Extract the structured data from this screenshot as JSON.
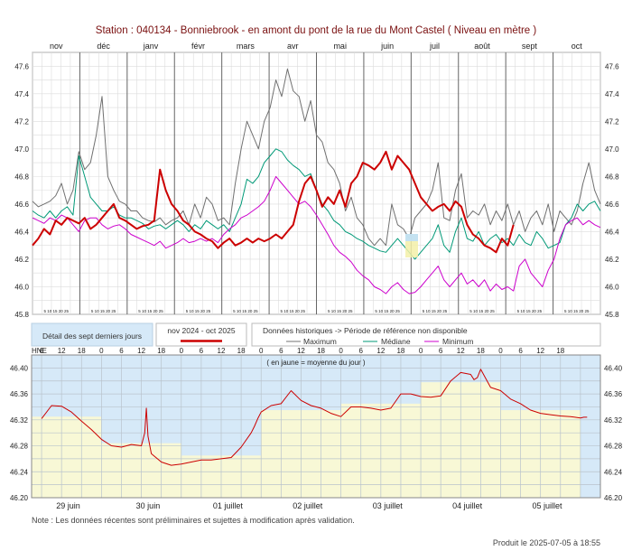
{
  "title": "Station : 040134       -    Bonniebrook - en amont du pont de la rue du Mont Castel   ( Niveau en mètre )",
  "colors": {
    "current": "#cc0000",
    "maximum": "#707070",
    "median": "#009977",
    "minimum": "#cc00cc",
    "panel_sky": "#d6e9f8",
    "panel_pale": "#f8f8d6"
  },
  "chart_data": [
    {
      "type": "line",
      "months": [
        "nov",
        "déc",
        "janv",
        "févr",
        "mars",
        "avr",
        "mai",
        "juin",
        "juil",
        "août",
        "sept",
        "oct"
      ],
      "week_tick_label": "5 10 15 20 25",
      "ylim": [
        45.8,
        47.7
      ],
      "yticks": [
        "45.8",
        "46.0",
        "46.2",
        "46.4",
        "46.6",
        "46.8",
        "47.0",
        "47.2",
        "47.4",
        "47.6"
      ],
      "series": [
        {
          "name": "Maximum",
          "key": "max",
          "values": [
            46.62,
            46.58,
            46.6,
            46.62,
            46.66,
            46.75,
            46.6,
            46.7,
            46.98,
            46.85,
            46.9,
            47.1,
            47.38,
            46.8,
            46.7,
            46.62,
            46.6,
            46.55,
            46.55,
            46.5,
            46.48,
            46.47,
            46.5,
            46.45,
            46.48,
            46.5,
            46.55,
            46.45,
            46.6,
            46.5,
            46.65,
            46.6,
            46.48,
            46.5,
            46.45,
            46.75,
            47.0,
            47.2,
            47.1,
            47.0,
            47.2,
            47.3,
            47.5,
            47.38,
            47.58,
            47.42,
            47.38,
            47.2,
            47.35,
            47.1,
            47.05,
            46.9,
            46.85,
            46.75,
            46.55,
            46.65,
            46.5,
            46.45,
            46.35,
            46.3,
            46.35,
            46.3,
            46.6,
            46.45,
            46.42,
            46.35,
            46.5,
            46.55,
            46.6,
            46.7,
            46.9,
            46.5,
            46.48,
            46.7,
            46.82,
            46.5,
            46.55,
            46.52,
            46.6,
            46.45,
            46.55,
            46.48,
            46.6,
            46.45,
            46.55,
            46.4,
            46.5,
            46.55,
            46.45,
            46.6,
            46.4,
            46.55,
            46.5,
            46.45,
            46.55,
            46.75,
            46.9,
            46.7,
            46.6
          ]
        },
        {
          "name": "Médiane",
          "key": "med",
          "values": [
            46.55,
            46.52,
            46.5,
            46.55,
            46.5,
            46.55,
            46.58,
            46.52,
            46.95,
            46.8,
            46.65,
            46.6,
            46.55,
            46.55,
            46.58,
            46.52,
            46.5,
            46.5,
            46.48,
            46.46,
            46.42,
            46.44,
            46.45,
            46.42,
            46.45,
            46.48,
            46.45,
            46.4,
            46.45,
            46.42,
            46.48,
            46.45,
            46.42,
            46.45,
            46.4,
            46.5,
            46.6,
            46.78,
            46.75,
            46.8,
            46.9,
            46.95,
            47.0,
            46.98,
            46.92,
            46.88,
            46.85,
            46.8,
            46.82,
            46.7,
            46.6,
            46.55,
            46.48,
            46.45,
            46.4,
            46.38,
            46.35,
            46.33,
            46.3,
            46.28,
            46.26,
            46.25,
            46.3,
            46.35,
            46.3,
            46.25,
            46.2,
            46.25,
            46.3,
            46.35,
            46.45,
            46.3,
            46.25,
            46.4,
            46.5,
            46.35,
            46.33,
            46.4,
            46.3,
            46.35,
            46.38,
            46.32,
            46.35,
            46.3,
            46.38,
            46.32,
            46.3,
            46.4,
            46.35,
            46.28,
            46.3,
            46.32,
            46.45,
            46.5,
            46.6,
            46.55,
            46.6,
            46.62,
            46.55
          ]
        },
        {
          "name": "Minimum",
          "key": "min",
          "values": [
            46.5,
            46.48,
            46.46,
            46.5,
            46.48,
            46.52,
            46.5,
            46.45,
            46.4,
            46.48,
            46.5,
            46.5,
            46.45,
            46.42,
            46.44,
            46.45,
            46.42,
            46.38,
            46.36,
            46.34,
            46.32,
            46.3,
            46.33,
            46.28,
            46.3,
            46.32,
            46.35,
            46.32,
            46.33,
            46.35,
            46.33,
            46.35,
            46.32,
            46.38,
            46.42,
            46.45,
            46.5,
            46.52,
            46.55,
            46.58,
            46.62,
            46.7,
            46.8,
            46.75,
            46.7,
            46.65,
            46.6,
            46.62,
            46.58,
            46.52,
            46.45,
            46.38,
            46.3,
            46.25,
            46.22,
            46.18,
            46.12,
            46.08,
            46.05,
            46.0,
            45.98,
            45.95,
            46.0,
            46.03,
            45.98,
            45.95,
            45.96,
            46.0,
            46.05,
            46.1,
            46.15,
            46.05,
            46.0,
            46.05,
            46.1,
            46.02,
            46.05,
            46.0,
            46.05,
            45.97,
            46.02,
            45.98,
            46.0,
            45.97,
            46.15,
            46.2,
            46.1,
            46.05,
            46.0,
            46.12,
            46.2,
            46.35,
            46.45,
            46.48,
            46.5,
            46.45,
            46.48,
            46.45,
            46.43
          ]
        },
        {
          "name": "nov 2024 - oct 2025",
          "key": "cur",
          "values": [
            46.3,
            46.35,
            46.42,
            46.38,
            46.48,
            46.45,
            46.5,
            46.48,
            46.46,
            46.5,
            46.42,
            46.45,
            46.5,
            46.55,
            46.6,
            46.5,
            46.48,
            46.45,
            46.42,
            46.44,
            46.45,
            46.48,
            46.85,
            46.7,
            46.6,
            46.55,
            46.48,
            46.45,
            46.4,
            46.38,
            46.35,
            46.33,
            46.28,
            46.32,
            46.35,
            46.3,
            46.32,
            46.35,
            46.32,
            46.35,
            46.33,
            46.35,
            46.38,
            46.35,
            46.4,
            46.45,
            46.62,
            46.75,
            46.8,
            46.7,
            46.58,
            46.65,
            46.6,
            46.7,
            46.58,
            46.75,
            46.8,
            46.9,
            46.88,
            46.85,
            46.9,
            46.98,
            46.85,
            46.95,
            46.9,
            46.85,
            46.75,
            46.65,
            46.6,
            46.55,
            46.58,
            46.6,
            46.55,
            46.62,
            46.58,
            46.45,
            46.38,
            46.35,
            46.3,
            46.28,
            46.25,
            46.35,
            46.3,
            46.45
          ]
        }
      ]
    },
    {
      "type": "line",
      "subtitle": "( en jaune = moyenne du jour )",
      "hne_label": "HNE",
      "hour_ticks": [
        "6",
        "12",
        "18",
        "0",
        "6",
        "12",
        "18",
        "0",
        "6",
        "12",
        "18",
        "0",
        "6",
        "12",
        "18",
        "0",
        "6",
        "12",
        "18",
        "0",
        "6",
        "12",
        "18",
        "0",
        "6",
        "12",
        "18"
      ],
      "day_labels": [
        "29 juin",
        "30 juin",
        "01 juillet",
        "02 juillet",
        "03 juillet",
        "04 juillet",
        "05 juillet"
      ],
      "ylim": [
        46.2,
        46.42
      ],
      "yticks": [
        "46.20",
        "46.24",
        "46.28",
        "46.32",
        "46.36",
        "46.40"
      ],
      "daily_mean": [
        46.325,
        46.284,
        46.265,
        46.335,
        46.345,
        46.378,
        46.335
      ],
      "series": [
        {
          "name": "niveau",
          "key": "cur",
          "x_hours": [
            0,
            3,
            6,
            9,
            12,
            15,
            18,
            21,
            24,
            27,
            30,
            31,
            31.5,
            32,
            33,
            36,
            39,
            42,
            45,
            48,
            51,
            54,
            57,
            60,
            63,
            64,
            65,
            66,
            69,
            72,
            75,
            78,
            81,
            84,
            87,
            90,
            93,
            96,
            99,
            102,
            105,
            108,
            111,
            114,
            117,
            120,
            123,
            126,
            129,
            130,
            131,
            132,
            135,
            138,
            141,
            144,
            147,
            150,
            153,
            156,
            159,
            162,
            163,
            164
          ],
          "values": [
            46.322,
            46.342,
            46.341,
            46.332,
            46.318,
            46.305,
            46.29,
            46.28,
            46.278,
            46.282,
            46.28,
            46.3,
            46.338,
            46.295,
            46.268,
            46.255,
            46.25,
            46.252,
            46.255,
            46.258,
            46.258,
            46.26,
            46.262,
            46.278,
            46.3,
            46.31,
            46.322,
            46.332,
            46.342,
            46.345,
            46.365,
            46.35,
            46.342,
            46.338,
            46.33,
            46.325,
            46.34,
            46.34,
            46.338,
            46.335,
            46.338,
            46.36,
            46.36,
            46.356,
            46.355,
            46.357,
            46.38,
            46.393,
            46.39,
            46.382,
            46.385,
            46.398,
            46.37,
            46.365,
            46.352,
            46.345,
            46.335,
            46.33,
            46.328,
            46.326,
            46.325,
            46.323,
            46.324,
            46.324
          ]
        }
      ]
    }
  ],
  "legend": {
    "detail_label": "Détail des sept derniers jours",
    "current_label": "nov 2024 - oct 2025",
    "historic_label": "Données historiques -> Période de référence non disponible",
    "max_label": "Maximum",
    "med_label": "Médiane",
    "min_label": "Minimum"
  },
  "note": "Note : Les données récentes sont préliminaires et sujettes à modification après validation.",
  "produced": "Produit le 2025-07-05 à 18:55"
}
